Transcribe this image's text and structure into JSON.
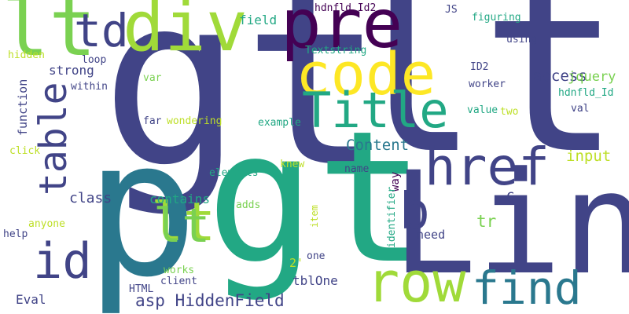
{
  "words": [
    {
      "text": "gt",
      "color": "#414487"
    },
    {
      "text": "lt",
      "color": "#414487"
    },
    {
      "text": "gt",
      "color": "#22a884"
    },
    {
      "text": "Link",
      "color": "#414487"
    },
    {
      "text": "p",
      "color": "#2a788e"
    },
    {
      "text": "lt",
      "color": "#a0da39"
    },
    {
      "text": "div",
      "color": "#a0da39"
    },
    {
      "text": "pre",
      "color": "#440154"
    },
    {
      "text": "code",
      "color": "#fde725"
    },
    {
      "text": "lt",
      "color": "#7ad151"
    },
    {
      "text": "td",
      "color": "#414487"
    },
    {
      "text": "Title",
      "color": "#22a884"
    },
    {
      "text": "href",
      "color": "#414487"
    },
    {
      "text": "table",
      "color": "#414487"
    },
    {
      "text": "row",
      "color": "#a0da39"
    },
    {
      "text": "find",
      "color": "#2a788e"
    },
    {
      "text": "id",
      "color": "#414487"
    },
    {
      "text": "b",
      "color": "#414487"
    },
    {
      "text": "lt",
      "color": "#7ad151"
    },
    {
      "text": "access",
      "color": "#414487"
    },
    {
      "text": "Content",
      "color": "#2a788e"
    },
    {
      "text": "input",
      "color": "#bddf26"
    },
    {
      "text": "jquery",
      "color": "#7ad151"
    },
    {
      "text": "asp HiddenField",
      "color": "#414487"
    },
    {
      "text": "strong",
      "color": "#414487"
    },
    {
      "text": "function",
      "color": "#414487"
    },
    {
      "text": "class",
      "color": "#414487"
    },
    {
      "text": "contains",
      "color": "#22a884"
    },
    {
      "text": "tr",
      "color": "#7ad151"
    },
    {
      "text": "need",
      "color": "#414487"
    },
    {
      "text": "way",
      "color": "#440154"
    },
    {
      "text": "field",
      "color": "#22a884"
    },
    {
      "text": "Textstring",
      "color": "#22a884"
    },
    {
      "text": "hdnfld_Id2",
      "color": "#440154"
    },
    {
      "text": "JS",
      "color": "#414487"
    },
    {
      "text": "figuring",
      "color": "#22a884"
    },
    {
      "text": "using",
      "color": "#414487"
    },
    {
      "text": "ID2",
      "color": "#414487"
    },
    {
      "text": "worker",
      "color": "#414487"
    },
    {
      "text": "hdnfld_Id",
      "color": "#22a884"
    },
    {
      "text": "val",
      "color": "#414487"
    },
    {
      "text": "value",
      "color": "#22a884"
    },
    {
      "text": "two",
      "color": "#bddf26"
    },
    {
      "text": "hidden",
      "color": "#bddf26"
    },
    {
      "text": "loop",
      "color": "#414487"
    },
    {
      "text": "within",
      "color": "#414487"
    },
    {
      "text": "var",
      "color": "#7ad151"
    },
    {
      "text": "far",
      "color": "#414487"
    },
    {
      "text": "wondering",
      "color": "#bddf26"
    },
    {
      "text": "example",
      "color": "#22a884"
    },
    {
      "text": "click",
      "color": "#bddf26"
    },
    {
      "text": "elements",
      "color": "#22a884"
    },
    {
      "text": "knew",
      "color": "#bddf26"
    },
    {
      "text": "name",
      "color": "#414487"
    },
    {
      "text": "C",
      "color": "#414487"
    },
    {
      "text": "adds",
      "color": "#7ad151"
    },
    {
      "text": "anyone",
      "color": "#bddf26"
    },
    {
      "text": "help",
      "color": "#414487"
    },
    {
      "text": "item",
      "color": "#bddf26"
    },
    {
      "text": "identifier",
      "color": "#22a884"
    },
    {
      "text": "2'",
      "color": "#bddf26"
    },
    {
      "text": "one",
      "color": "#414487"
    },
    {
      "text": "works",
      "color": "#7ad151"
    },
    {
      "text": "client",
      "color": "#414487"
    },
    {
      "text": "HTML",
      "color": "#414487"
    },
    {
      "text": "tblOne",
      "color": "#414487"
    },
    {
      "text": "Eval",
      "color": "#414487"
    }
  ]
}
